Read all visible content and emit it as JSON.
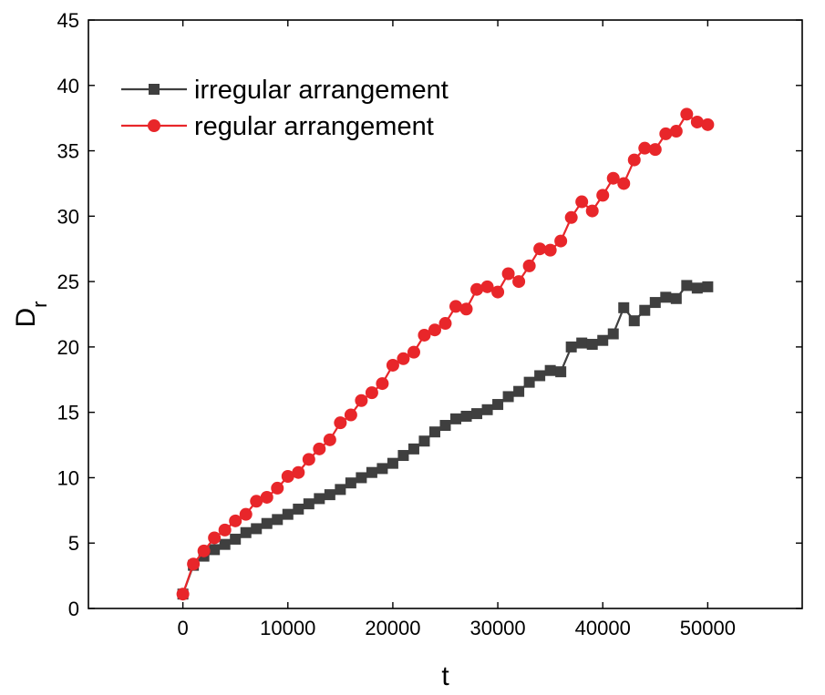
{
  "chart_data": {
    "type": "line",
    "title": "",
    "xlabel": "t",
    "ylabel": "D",
    "ylabel_subscript": "r",
    "xlim": [
      -9000,
      59000
    ],
    "ylim": [
      0,
      45
    ],
    "xticks": [
      0,
      10000,
      20000,
      30000,
      40000,
      50000
    ],
    "xtick_labels": [
      "0",
      "10000",
      "20000",
      "30000",
      "40000",
      "50000"
    ],
    "yticks": [
      0,
      5,
      10,
      15,
      20,
      25,
      30,
      35,
      40,
      45
    ],
    "ytick_labels": [
      "0",
      "5",
      "10",
      "15",
      "20",
      "25",
      "30",
      "35",
      "40",
      "45"
    ],
    "grid": false,
    "legend_position": "top-left",
    "x": [
      0,
      1000,
      2000,
      3000,
      4000,
      5000,
      6000,
      7000,
      8000,
      9000,
      10000,
      11000,
      12000,
      13000,
      14000,
      15000,
      16000,
      17000,
      18000,
      19000,
      20000,
      21000,
      22000,
      23000,
      24000,
      25000,
      26000,
      27000,
      28000,
      29000,
      30000,
      31000,
      32000,
      33000,
      34000,
      35000,
      36000,
      37000,
      38000,
      39000,
      40000,
      41000,
      42000,
      43000,
      44000,
      45000,
      46000,
      47000,
      48000,
      49000,
      50000
    ],
    "series": [
      {
        "name": "irregular arrangement",
        "color": "#3f3f3f",
        "marker": "square",
        "values": [
          1.1,
          3.3,
          4.0,
          4.5,
          4.9,
          5.3,
          5.8,
          6.1,
          6.5,
          6.8,
          7.2,
          7.6,
          8.0,
          8.4,
          8.7,
          9.1,
          9.6,
          10.0,
          10.4,
          10.7,
          11.1,
          11.7,
          12.2,
          12.8,
          13.5,
          14.0,
          14.5,
          14.7,
          14.9,
          15.2,
          15.6,
          16.2,
          16.6,
          17.3,
          17.8,
          18.2,
          18.1,
          20.0,
          20.3,
          20.2,
          20.5,
          21.0,
          23.0,
          22.0,
          22.8,
          23.4,
          23.8,
          23.7,
          24.7,
          24.5,
          24.6
        ]
      },
      {
        "name": "regular arrangement",
        "color": "#e8262a",
        "marker": "circle",
        "values": [
          1.1,
          3.4,
          4.4,
          5.4,
          6.0,
          6.7,
          7.2,
          8.2,
          8.5,
          9.2,
          10.1,
          10.4,
          11.4,
          12.2,
          12.9,
          14.2,
          14.8,
          15.9,
          16.5,
          17.2,
          18.6,
          19.1,
          19.6,
          20.9,
          21.3,
          21.8,
          23.1,
          22.9,
          24.4,
          24.6,
          24.2,
          25.6,
          25.0,
          26.2,
          27.5,
          27.4,
          28.1,
          29.9,
          31.1,
          30.4,
          31.6,
          32.9,
          32.5,
          34.3,
          35.2,
          35.1,
          36.3,
          36.5,
          37.8,
          37.2,
          37.0
        ]
      }
    ]
  }
}
